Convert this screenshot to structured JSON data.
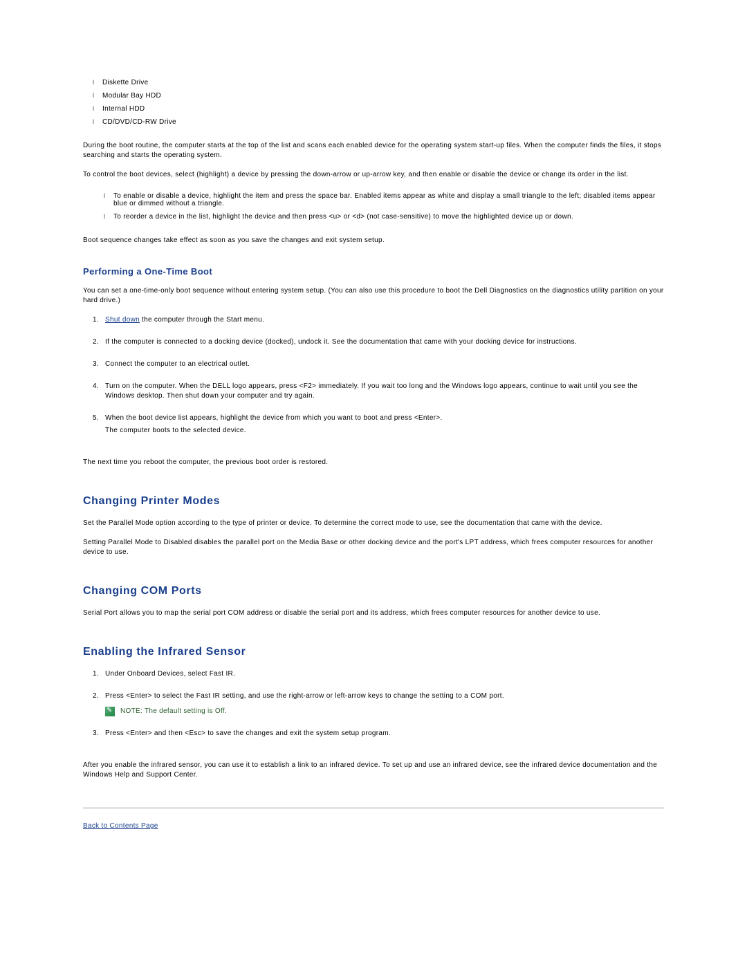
{
  "colors": {
    "heading": "#1a3f8c",
    "link": "#1a3f8c",
    "note_text": "#2a5a2a",
    "body_text": "#000000",
    "background": "#ffffff",
    "hr": "#999999"
  },
  "boot_devices": [
    "Diskette Drive",
    "Modular Bay HDD",
    "Internal HDD",
    "CD/DVD/CD-RW Drive"
  ],
  "paragraphs": {
    "boot_routine": "During the boot routine, the computer starts at the top of the list and scans each enabled device for the operating system start-up files. When the computer finds the files, it stops searching and starts the operating system.",
    "control_boot": "To control the boot devices, select (highlight) a device by pressing the down-arrow or up-arrow key, and then enable or disable the device or change its order in the list.",
    "boot_changes": "Boot sequence changes take effect as soon as you save the changes and exit system setup.",
    "onetime_intro": "You can set a one-time-only boot sequence without entering system setup. (You can also use this procedure to boot the Dell Diagnostics on the diagnostics utility partition on your hard drive.)",
    "onetime_outro": "The next time you reboot the computer, the previous boot order is restored.",
    "printer_p1": "Set the Parallel Mode option according to the type of printer or device. To determine the correct mode to use, see the documentation that came with the device.",
    "printer_p2": "Setting Parallel Mode to Disabled disables the parallel port on the Media Base or other docking device and the port's LPT address, which frees computer resources for another device to use.",
    "com_ports": "Serial Port allows you to map the serial port COM address or disable the serial port and its address, which frees computer resources for another device to use.",
    "infrared_outro": "After you enable the infrared sensor, you can use it to establish a link to an infrared device. To set up and use an infrared device, see the infrared device documentation and the Windows Help and Support Center."
  },
  "control_bullets": [
    "To enable or disable a device, highlight the item and press the space bar. Enabled items appear as white and display a small triangle to the left; disabled items appear blue or dimmed without a triangle.",
    "To reorder a device in the list, highlight the device and then press <u> or <d> (not case-sensitive) to move the highlighted device up or down."
  ],
  "headings": {
    "one_time": "Performing a One-Time Boot",
    "printer_modes": "Changing Printer Modes",
    "com_ports": "Changing COM Ports",
    "infrared": "Enabling the Infrared Sensor"
  },
  "one_time_steps": {
    "s1_link": "Shut down",
    "s1_rest": " the computer through the Start menu.",
    "s2": "If the computer is connected to a docking device (docked), undock it. See the documentation that came with your docking device for instructions.",
    "s3": "Connect the computer to an electrical outlet.",
    "s4": "Turn on the computer. When the DELL logo appears, press <F2> immediately. If you wait too long and the Windows logo appears, continue to wait until you see the Windows desktop. Then shut down your computer and try again.",
    "s5": "When the boot device list appears, highlight the device from which you want to boot and press <Enter>.",
    "s5_extra": "The computer boots to the selected device."
  },
  "infrared_steps": {
    "s1": "Under Onboard Devices, select Fast IR.",
    "s2": "Press <Enter> to select the Fast IR setting, and use the right-arrow or left-arrow keys to change the setting to a COM port.",
    "note": "NOTE: The default setting is Off.",
    "s3": "Press <Enter> and then <Esc> to save the changes and exit the system setup program."
  },
  "back_link": "Back to Contents Page"
}
